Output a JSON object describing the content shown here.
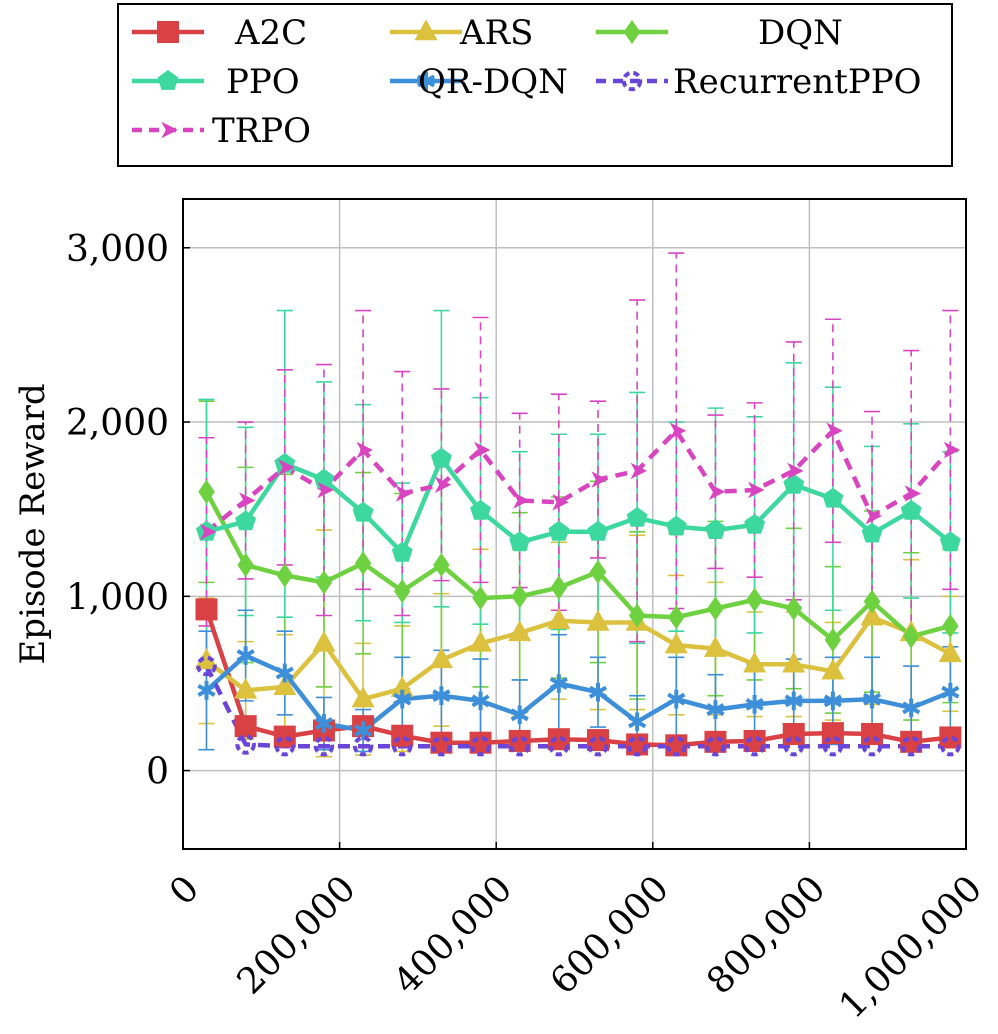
{
  "chart_data": {
    "type": "line",
    "title": "",
    "xlabel": "",
    "ylabel": "Episode Reward",
    "xlim": [
      0,
      1000000
    ],
    "ylim": [
      -450,
      3280
    ],
    "xticks": [
      0,
      200000,
      400000,
      600000,
      800000,
      1000000
    ],
    "xtick_labels": [
      "0",
      "200,000",
      "400,000",
      "600,000",
      "800,000",
      "1,000,000"
    ],
    "yticks": [
      0,
      1000,
      2000,
      3000
    ],
    "ytick_labels": [
      "0",
      "1,000",
      "2,000",
      "3,000"
    ],
    "grid": true,
    "legend_position": "top (outside)",
    "x": [
      30000,
      80000,
      130000,
      180000,
      230000,
      280000,
      330000,
      380000,
      430000,
      480000,
      530000,
      580000,
      630000,
      680000,
      730000,
      780000,
      830000,
      880000,
      930000,
      980000
    ],
    "series": [
      {
        "name": "A2C",
        "color": "#d94144",
        "marker": "square",
        "dashed": false,
        "values": [
          925,
          255,
          195,
          230,
          255,
          200,
          160,
          160,
          170,
          180,
          175,
          150,
          145,
          165,
          170,
          210,
          215,
          210,
          165,
          190
        ],
        "err": [
          0,
          0,
          0,
          0,
          0,
          0,
          0,
          0,
          0,
          0,
          0,
          0,
          0,
          0,
          0,
          0,
          0,
          0,
          0,
          0
        ]
      },
      {
        "name": "ARS",
        "color": "#dcc13e",
        "marker": "triangle",
        "dashed": false,
        "values": [
          630,
          460,
          480,
          730,
          410,
          470,
          635,
          730,
          790,
          860,
          850,
          850,
          720,
          700,
          610,
          610,
          570,
          880,
          790,
          670
        ],
        "err": [
          360,
          280,
          300,
          650,
          320,
          360,
          380,
          540,
          480,
          450,
          500,
          500,
          400,
          380,
          300,
          300,
          280,
          500,
          420,
          330
        ]
      },
      {
        "name": "DQN",
        "color": "#6ed13f",
        "marker": "diamond",
        "dashed": false,
        "values": [
          1600,
          1180,
          1120,
          1080,
          1190,
          1030,
          1180,
          990,
          1000,
          1050,
          1140,
          890,
          880,
          930,
          980,
          930,
          750,
          970,
          770,
          830
        ],
        "err": [
          520,
          560,
          580,
          600,
          520,
          560,
          580,
          510,
          480,
          520,
          520,
          480,
          480,
          500,
          460,
          460,
          420,
          520,
          480,
          440
        ]
      },
      {
        "name": "PPO",
        "color": "#3dd8a0",
        "marker": "pentagon",
        "dashed": false,
        "values": [
          1370,
          1430,
          1760,
          1670,
          1480,
          1250,
          1790,
          1490,
          1310,
          1370,
          1370,
          1450,
          1400,
          1380,
          1410,
          1640,
          1560,
          1360,
          1490,
          1310
        ],
        "err": [
          760,
          540,
          880,
          560,
          620,
          400,
          850,
          650,
          520,
          560,
          560,
          720,
          600,
          700,
          620,
          700,
          640,
          500,
          500,
          520
        ]
      },
      {
        "name": "QR-DQN",
        "color": "#3d8fd9",
        "marker": "star",
        "dashed": false,
        "values": [
          460,
          660,
          560,
          270,
          230,
          410,
          430,
          400,
          320,
          500,
          450,
          280,
          410,
          350,
          380,
          400,
          400,
          410,
          360,
          450
        ],
        "err": [
          340,
          260,
          240,
          150,
          120,
          240,
          260,
          240,
          200,
          280,
          200,
          150,
          240,
          200,
          230,
          240,
          250,
          240,
          240,
          260
        ]
      },
      {
        "name": "RecurrentPPO",
        "color": "#6a45d9",
        "marker": "open-circle",
        "dashed": true,
        "values": [
          600,
          150,
          140,
          140,
          140,
          140,
          140,
          140,
          140,
          140,
          140,
          140,
          140,
          140,
          140,
          140,
          140,
          140,
          140,
          140
        ],
        "err": [
          0,
          0,
          0,
          0,
          0,
          0,
          0,
          0,
          0,
          0,
          0,
          0,
          0,
          0,
          0,
          0,
          0,
          0,
          0,
          0
        ]
      },
      {
        "name": "TRPO",
        "color": "#d945c0",
        "marker": "arrow",
        "dashed": true,
        "values": [
          1370,
          1550,
          1740,
          1610,
          1840,
          1590,
          1640,
          1840,
          1550,
          1540,
          1670,
          1720,
          1950,
          1600,
          1610,
          1720,
          1950,
          1460,
          1590,
          1840
        ],
        "err": [
          540,
          450,
          560,
          720,
          800,
          700,
          550,
          760,
          500,
          620,
          450,
          980,
          1020,
          440,
          500,
          740,
          640,
          600,
          820,
          800
        ]
      }
    ]
  }
}
